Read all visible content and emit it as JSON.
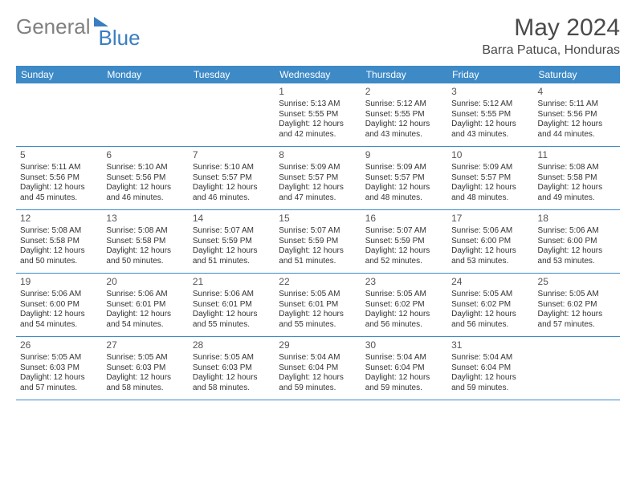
{
  "logo": {
    "text1": "General",
    "text2": "Blue"
  },
  "title": "May 2024",
  "location": "Barra Patuca, Honduras",
  "colors": {
    "header_bg": "#3d8ac7",
    "header_text": "#ffffff",
    "week_border": "#3d8ac7",
    "body_text": "#333333",
    "daynum_text": "#555555",
    "logo_gray": "#808080",
    "logo_blue": "#3a7ec1"
  },
  "weekdays": [
    "Sunday",
    "Monday",
    "Tuesday",
    "Wednesday",
    "Thursday",
    "Friday",
    "Saturday"
  ],
  "weeks": [
    [
      null,
      null,
      null,
      {
        "n": "1",
        "sr": "5:13 AM",
        "ss": "5:55 PM",
        "dl": "12 hours and 42 minutes."
      },
      {
        "n": "2",
        "sr": "5:12 AM",
        "ss": "5:55 PM",
        "dl": "12 hours and 43 minutes."
      },
      {
        "n": "3",
        "sr": "5:12 AM",
        "ss": "5:55 PM",
        "dl": "12 hours and 43 minutes."
      },
      {
        "n": "4",
        "sr": "5:11 AM",
        "ss": "5:56 PM",
        "dl": "12 hours and 44 minutes."
      }
    ],
    [
      {
        "n": "5",
        "sr": "5:11 AM",
        "ss": "5:56 PM",
        "dl": "12 hours and 45 minutes."
      },
      {
        "n": "6",
        "sr": "5:10 AM",
        "ss": "5:56 PM",
        "dl": "12 hours and 46 minutes."
      },
      {
        "n": "7",
        "sr": "5:10 AM",
        "ss": "5:57 PM",
        "dl": "12 hours and 46 minutes."
      },
      {
        "n": "8",
        "sr": "5:09 AM",
        "ss": "5:57 PM",
        "dl": "12 hours and 47 minutes."
      },
      {
        "n": "9",
        "sr": "5:09 AM",
        "ss": "5:57 PM",
        "dl": "12 hours and 48 minutes."
      },
      {
        "n": "10",
        "sr": "5:09 AM",
        "ss": "5:57 PM",
        "dl": "12 hours and 48 minutes."
      },
      {
        "n": "11",
        "sr": "5:08 AM",
        "ss": "5:58 PM",
        "dl": "12 hours and 49 minutes."
      }
    ],
    [
      {
        "n": "12",
        "sr": "5:08 AM",
        "ss": "5:58 PM",
        "dl": "12 hours and 50 minutes."
      },
      {
        "n": "13",
        "sr": "5:08 AM",
        "ss": "5:58 PM",
        "dl": "12 hours and 50 minutes."
      },
      {
        "n": "14",
        "sr": "5:07 AM",
        "ss": "5:59 PM",
        "dl": "12 hours and 51 minutes."
      },
      {
        "n": "15",
        "sr": "5:07 AM",
        "ss": "5:59 PM",
        "dl": "12 hours and 51 minutes."
      },
      {
        "n": "16",
        "sr": "5:07 AM",
        "ss": "5:59 PM",
        "dl": "12 hours and 52 minutes."
      },
      {
        "n": "17",
        "sr": "5:06 AM",
        "ss": "6:00 PM",
        "dl": "12 hours and 53 minutes."
      },
      {
        "n": "18",
        "sr": "5:06 AM",
        "ss": "6:00 PM",
        "dl": "12 hours and 53 minutes."
      }
    ],
    [
      {
        "n": "19",
        "sr": "5:06 AM",
        "ss": "6:00 PM",
        "dl": "12 hours and 54 minutes."
      },
      {
        "n": "20",
        "sr": "5:06 AM",
        "ss": "6:01 PM",
        "dl": "12 hours and 54 minutes."
      },
      {
        "n": "21",
        "sr": "5:06 AM",
        "ss": "6:01 PM",
        "dl": "12 hours and 55 minutes."
      },
      {
        "n": "22",
        "sr": "5:05 AM",
        "ss": "6:01 PM",
        "dl": "12 hours and 55 minutes."
      },
      {
        "n": "23",
        "sr": "5:05 AM",
        "ss": "6:02 PM",
        "dl": "12 hours and 56 minutes."
      },
      {
        "n": "24",
        "sr": "5:05 AM",
        "ss": "6:02 PM",
        "dl": "12 hours and 56 minutes."
      },
      {
        "n": "25",
        "sr": "5:05 AM",
        "ss": "6:02 PM",
        "dl": "12 hours and 57 minutes."
      }
    ],
    [
      {
        "n": "26",
        "sr": "5:05 AM",
        "ss": "6:03 PM",
        "dl": "12 hours and 57 minutes."
      },
      {
        "n": "27",
        "sr": "5:05 AM",
        "ss": "6:03 PM",
        "dl": "12 hours and 58 minutes."
      },
      {
        "n": "28",
        "sr": "5:05 AM",
        "ss": "6:03 PM",
        "dl": "12 hours and 58 minutes."
      },
      {
        "n": "29",
        "sr": "5:04 AM",
        "ss": "6:04 PM",
        "dl": "12 hours and 59 minutes."
      },
      {
        "n": "30",
        "sr": "5:04 AM",
        "ss": "6:04 PM",
        "dl": "12 hours and 59 minutes."
      },
      {
        "n": "31",
        "sr": "5:04 AM",
        "ss": "6:04 PM",
        "dl": "12 hours and 59 minutes."
      },
      null
    ]
  ],
  "labels": {
    "sunrise": "Sunrise:",
    "sunset": "Sunset:",
    "daylight": "Daylight:"
  }
}
